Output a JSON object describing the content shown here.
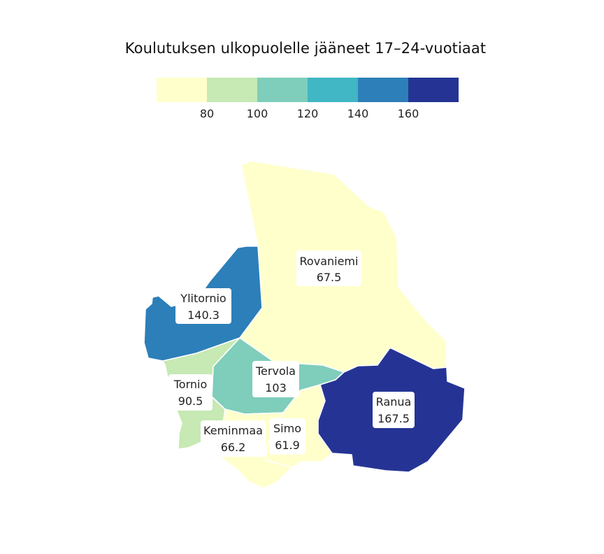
{
  "title": "Koulutuksen ulkopuolelle jääneet 17–24-vuotiaat",
  "legend": {
    "colors": [
      "#ffffcc",
      "#c7e9b4",
      "#7fcdbb",
      "#41b6c4",
      "#2c7fb8",
      "#253494"
    ],
    "ticks": [
      "80",
      "100",
      "120",
      "140",
      "160"
    ]
  },
  "regions": [
    {
      "name": "Rovaniemi",
      "value": "67.5",
      "color": "#ffffcc"
    },
    {
      "name": "Ylitornio",
      "value": "140.3",
      "color": "#2c7fb8"
    },
    {
      "name": "Tornio",
      "value": "90.5",
      "color": "#c7e9b4"
    },
    {
      "name": "Tervola",
      "value": "103",
      "color": "#7fcdbb"
    },
    {
      "name": "Keminmaa",
      "value": "66.2",
      "color": "#ffffcc"
    },
    {
      "name": "Simo",
      "value": "61.9",
      "color": "#ffffcc"
    },
    {
      "name": "Ranua",
      "value": "167.5",
      "color": "#253494"
    }
  ]
}
